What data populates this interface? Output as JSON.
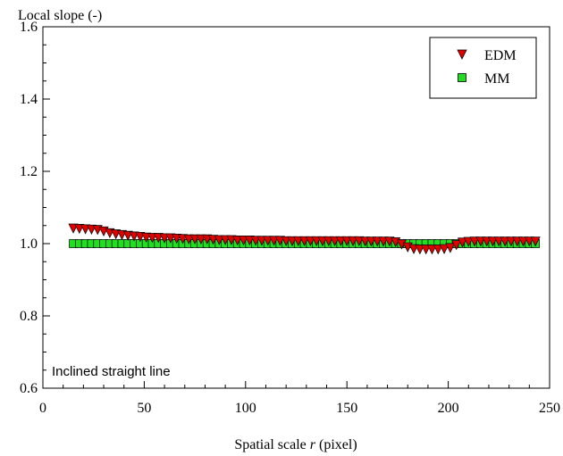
{
  "chart_data": {
    "type": "scatter",
    "ylabel": "Local slope (-)",
    "xlabel_prefix": "Spatial scale ",
    "xlabel_var": "r",
    "xlabel_suffix": " (pixel)",
    "annotation": "Inclined straight line",
    "xlim": [
      0,
      250
    ],
    "ylim": [
      0.6,
      1.6
    ],
    "x_ticks": [
      0,
      50,
      100,
      150,
      200,
      250
    ],
    "y_ticks": [
      0.6,
      0.8,
      1.0,
      1.2,
      1.4,
      1.6
    ],
    "x_tick_labels": [
      "0",
      "50",
      "100",
      "150",
      "200",
      "250"
    ],
    "y_tick_labels": [
      "0.6",
      "0.8",
      "1.0",
      "1.2",
      "1.4",
      "1.6"
    ],
    "grid": false,
    "legend_position": "top-right",
    "series": [
      {
        "name": "EDM",
        "marker": "triangle-down",
        "color": "#e00000",
        "points": [
          [
            15,
            1.042
          ],
          [
            18,
            1.041
          ],
          [
            21,
            1.04
          ],
          [
            24,
            1.039
          ],
          [
            27,
            1.038
          ],
          [
            30,
            1.034
          ],
          [
            33,
            1.029
          ],
          [
            36,
            1.026
          ],
          [
            39,
            1.024
          ],
          [
            42,
            1.022
          ],
          [
            45,
            1.02
          ],
          [
            48,
            1.019
          ],
          [
            51,
            1.017
          ],
          [
            54,
            1.016
          ],
          [
            57,
            1.016
          ],
          [
            60,
            1.015
          ],
          [
            63,
            1.015
          ],
          [
            66,
            1.014
          ],
          [
            69,
            1.013
          ],
          [
            72,
            1.012
          ],
          [
            75,
            1.012
          ],
          [
            78,
            1.012
          ],
          [
            81,
            1.012
          ],
          [
            84,
            1.011
          ],
          [
            87,
            1.01
          ],
          [
            90,
            1.01
          ],
          [
            93,
            1.01
          ],
          [
            96,
            1.009
          ],
          [
            99,
            1.009
          ],
          [
            102,
            1.009
          ],
          [
            105,
            1.008
          ],
          [
            108,
            1.008
          ],
          [
            111,
            1.008
          ],
          [
            114,
            1.008
          ],
          [
            117,
            1.008
          ],
          [
            120,
            1.007
          ],
          [
            123,
            1.007
          ],
          [
            126,
            1.007
          ],
          [
            129,
            1.007
          ],
          [
            132,
            1.007
          ],
          [
            135,
            1.007
          ],
          [
            138,
            1.007
          ],
          [
            141,
            1.007
          ],
          [
            144,
            1.007
          ],
          [
            147,
            1.007
          ],
          [
            150,
            1.007
          ],
          [
            153,
            1.007
          ],
          [
            156,
            1.007
          ],
          [
            159,
            1.006
          ],
          [
            162,
            1.006
          ],
          [
            165,
            1.006
          ],
          [
            168,
            1.006
          ],
          [
            171,
            1.006
          ],
          [
            174,
            1.004
          ],
          [
            177,
            0.998
          ],
          [
            180,
            0.99
          ],
          [
            183,
            0.985
          ],
          [
            186,
            0.984
          ],
          [
            189,
            0.984
          ],
          [
            192,
            0.984
          ],
          [
            195,
            0.984
          ],
          [
            198,
            0.985
          ],
          [
            201,
            0.988
          ],
          [
            204,
            0.996
          ],
          [
            207,
            1.003
          ],
          [
            210,
            1.005
          ],
          [
            213,
            1.006
          ],
          [
            216,
            1.006
          ],
          [
            219,
            1.006
          ],
          [
            222,
            1.006
          ],
          [
            225,
            1.006
          ],
          [
            228,
            1.006
          ],
          [
            231,
            1.006
          ],
          [
            234,
            1.006
          ],
          [
            237,
            1.006
          ],
          [
            240,
            1.006
          ],
          [
            243,
            1.006
          ]
        ]
      },
      {
        "name": "MM",
        "marker": "square",
        "color": "#22dd22",
        "points": [
          [
            15,
            1.0
          ],
          [
            18,
            1.0
          ],
          [
            21,
            1.0
          ],
          [
            24,
            1.0
          ],
          [
            27,
            1.0
          ],
          [
            30,
            1.0
          ],
          [
            33,
            1.0
          ],
          [
            36,
            1.0
          ],
          [
            39,
            1.0
          ],
          [
            42,
            1.0
          ],
          [
            45,
            1.0
          ],
          [
            48,
            1.0
          ],
          [
            51,
            1.0
          ],
          [
            54,
            1.0
          ],
          [
            57,
            1.0
          ],
          [
            60,
            1.0
          ],
          [
            63,
            1.0
          ],
          [
            66,
            1.0
          ],
          [
            69,
            1.0
          ],
          [
            72,
            1.0
          ],
          [
            75,
            1.0
          ],
          [
            78,
            1.0
          ],
          [
            81,
            1.0
          ],
          [
            84,
            1.0
          ],
          [
            87,
            1.0
          ],
          [
            90,
            1.0
          ],
          [
            93,
            1.0
          ],
          [
            96,
            1.0
          ],
          [
            99,
            1.0
          ],
          [
            102,
            1.0
          ],
          [
            105,
            1.0
          ],
          [
            108,
            1.0
          ],
          [
            111,
            1.0
          ],
          [
            114,
            1.0
          ],
          [
            117,
            1.0
          ],
          [
            120,
            1.0
          ],
          [
            123,
            1.0
          ],
          [
            126,
            1.0
          ],
          [
            129,
            1.0
          ],
          [
            132,
            1.0
          ],
          [
            135,
            1.0
          ],
          [
            138,
            1.0
          ],
          [
            141,
            1.0
          ],
          [
            144,
            1.0
          ],
          [
            147,
            1.0
          ],
          [
            150,
            1.0
          ],
          [
            153,
            1.0
          ],
          [
            156,
            1.0
          ],
          [
            159,
            1.0
          ],
          [
            162,
            1.0
          ],
          [
            165,
            1.0
          ],
          [
            168,
            1.0
          ],
          [
            171,
            1.0
          ],
          [
            174,
            1.0
          ],
          [
            177,
            1.0
          ],
          [
            180,
            1.0
          ],
          [
            183,
            1.0
          ],
          [
            186,
            1.0
          ],
          [
            189,
            1.0
          ],
          [
            192,
            1.0
          ],
          [
            195,
            1.0
          ],
          [
            198,
            1.0
          ],
          [
            201,
            1.0
          ],
          [
            204,
            1.0
          ],
          [
            207,
            1.0
          ],
          [
            210,
            1.0
          ],
          [
            213,
            1.0
          ],
          [
            216,
            1.0
          ],
          [
            219,
            1.0
          ],
          [
            222,
            1.0
          ],
          [
            225,
            1.0
          ],
          [
            228,
            1.0
          ],
          [
            231,
            1.0
          ],
          [
            234,
            1.0
          ],
          [
            237,
            1.0
          ],
          [
            240,
            1.0
          ],
          [
            243,
            1.0
          ]
        ]
      }
    ]
  }
}
